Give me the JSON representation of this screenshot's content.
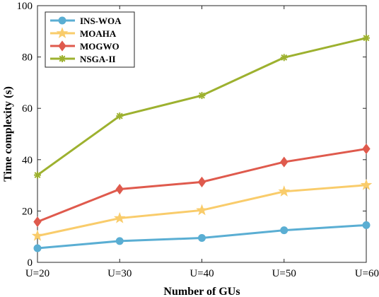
{
  "chart_data": {
    "type": "line",
    "title": "",
    "xlabel": "Number of GUs",
    "ylabel": "Time complexity (s)",
    "categories": [
      "U=20",
      "U=30",
      "U=40",
      "U=50",
      "U=60"
    ],
    "ylim": [
      0,
      100
    ],
    "yticks": [
      0,
      20,
      40,
      60,
      80,
      100
    ],
    "grid": false,
    "legend_position": "top-left",
    "series": [
      {
        "name": "INS-WOA",
        "color": "#5aaed3",
        "marker": "circle",
        "values": [
          5.5,
          8.3,
          9.5,
          12.5,
          14.5
        ]
      },
      {
        "name": "MOAHA",
        "color": "#f9cc6b",
        "marker": "star",
        "values": [
          10.3,
          17.2,
          20.3,
          27.6,
          30.1
        ]
      },
      {
        "name": "MOGWO",
        "color": "#df5a4d",
        "marker": "diamond",
        "values": [
          15.8,
          28.5,
          31.3,
          39.1,
          44.2
        ]
      },
      {
        "name": "NSGA-II",
        "color": "#9db12f",
        "marker": "asterisk",
        "values": [
          34.0,
          57.0,
          65.0,
          79.8,
          87.4
        ]
      }
    ]
  }
}
